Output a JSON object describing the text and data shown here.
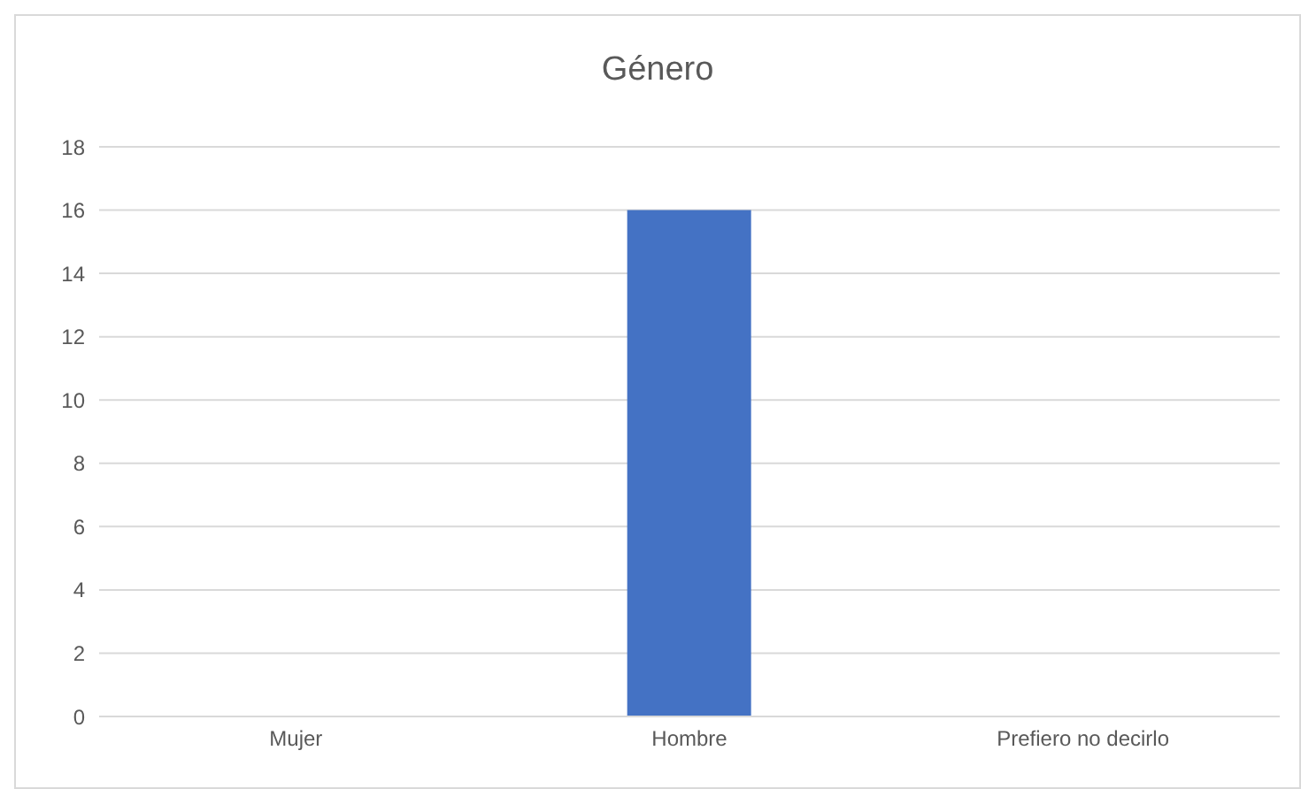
{
  "chart_data": {
    "type": "bar",
    "title": "Género",
    "categories": [
      "Mujer",
      "Hombre",
      "Prefiero no decirlo"
    ],
    "values": [
      0,
      16,
      0
    ],
    "color": "#4472c4",
    "ylim": [
      0,
      18
    ],
    "yticks": [
      0,
      2,
      4,
      6,
      8,
      10,
      12,
      14,
      16,
      18
    ],
    "grid": "y",
    "legend": false
  }
}
